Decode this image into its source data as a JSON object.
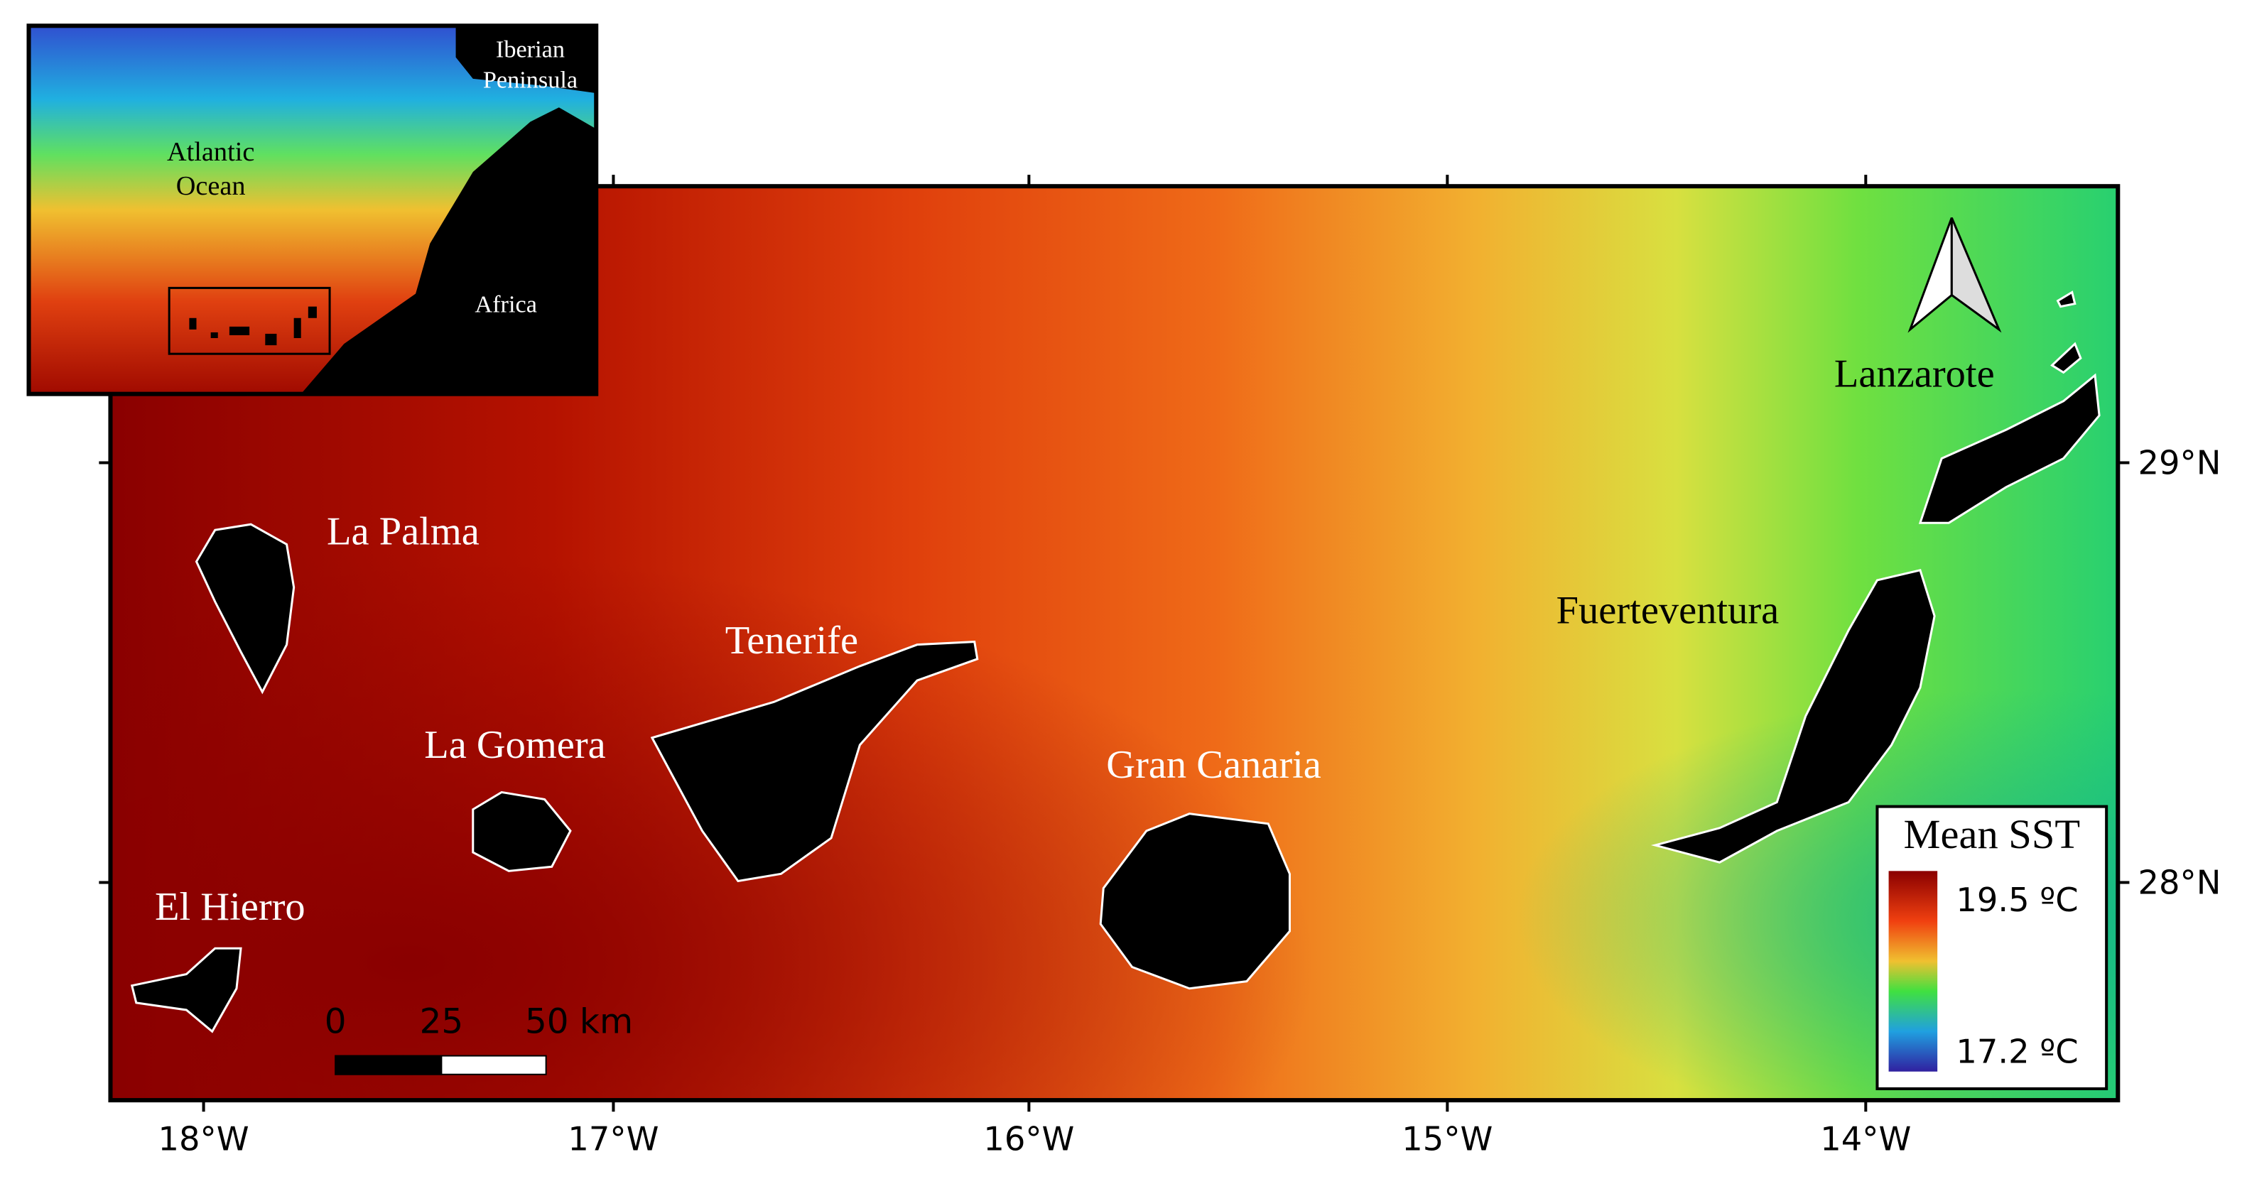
{
  "map": {
    "inset": {
      "labels": [
        "Iberian Peninsula",
        "Atlantic Ocean",
        "Africa"
      ]
    },
    "islands": [
      "La Palma",
      "El Hierro",
      "La Gomera",
      "Tenerife",
      "Gran Canaria",
      "Fuerteventura",
      "Lanzarote"
    ],
    "x_ticks": [
      "18°W",
      "17°W",
      "16°W",
      "15°W",
      "14°W"
    ],
    "y_ticks": [
      "29°N",
      "28°N"
    ],
    "legend": {
      "title": "Mean SST",
      "max": "19.5 ºC",
      "min": "17.2 ºC"
    },
    "scale_bar": [
      "0",
      "25",
      "50 km"
    ]
  }
}
